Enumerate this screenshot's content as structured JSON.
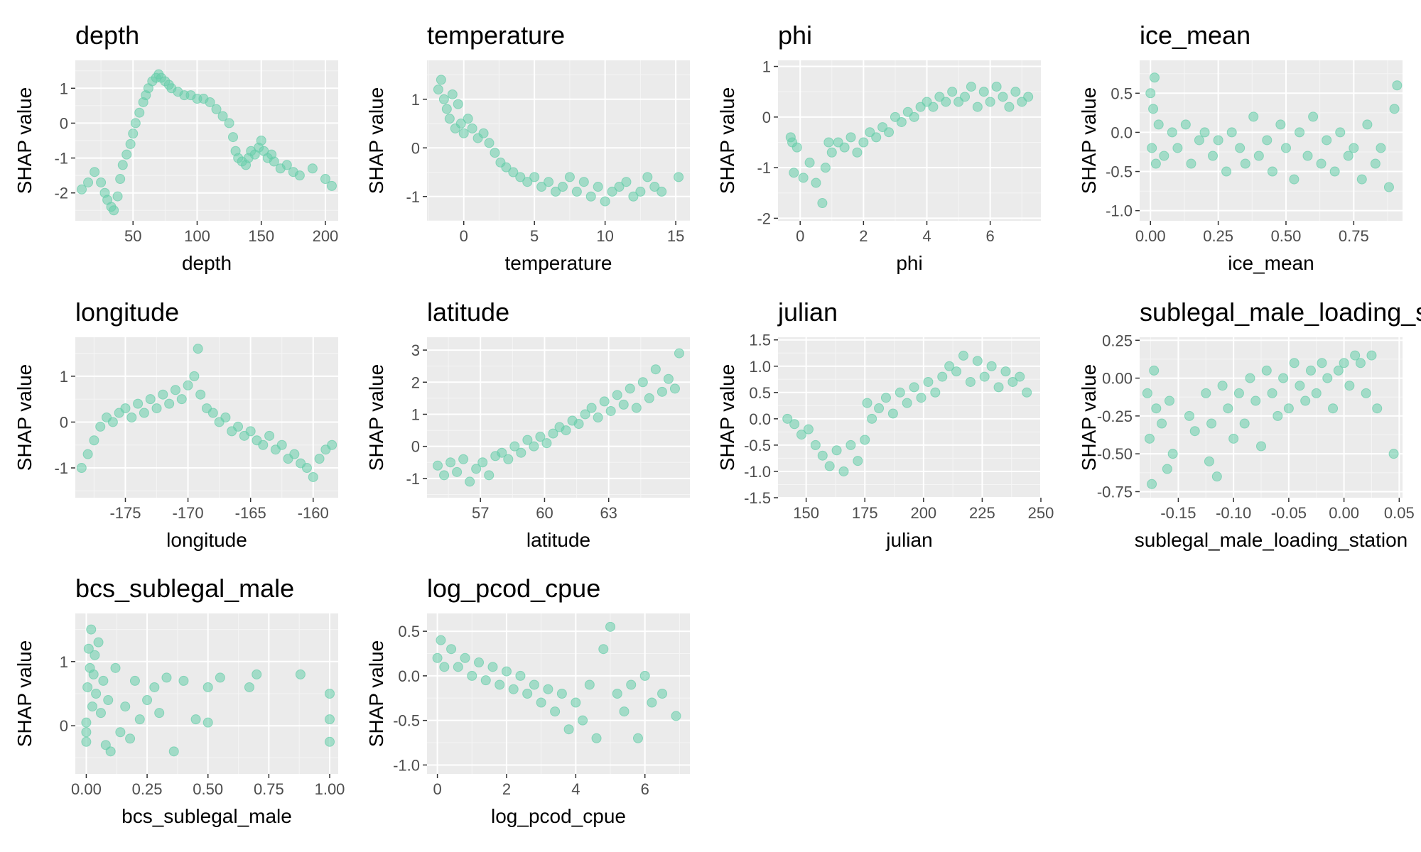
{
  "figure": {
    "colors": {
      "panel_bg": "#ebebeb",
      "grid_major": "#ffffff",
      "grid_minor": "#f5f5f5",
      "point": "#66cdaa",
      "tick_text": "#4d4d4d",
      "text": "#000000"
    }
  },
  "chart_data": [
    {
      "type": "scatter",
      "title": "depth",
      "xlabel": "depth",
      "ylabel": "SHAP value",
      "xlim": [
        5,
        210
      ],
      "ylim": [
        -2.8,
        1.8
      ],
      "xticks": [
        50,
        100,
        150,
        200
      ],
      "xtick_labels": [
        "50",
        "100",
        "150",
        "200"
      ],
      "yticks": [
        -2,
        -1,
        0,
        1
      ],
      "ytick_labels": [
        "-2",
        "-1",
        "0",
        "1"
      ],
      "x": [
        10,
        15,
        20,
        25,
        28,
        30,
        33,
        35,
        38,
        40,
        42,
        45,
        48,
        50,
        52,
        55,
        58,
        60,
        62,
        65,
        68,
        70,
        72,
        75,
        78,
        80,
        85,
        90,
        95,
        100,
        105,
        110,
        115,
        120,
        125,
        128,
        130,
        132,
        135,
        138,
        140,
        142,
        145,
        148,
        150,
        152,
        155,
        158,
        160,
        165,
        170,
        175,
        180,
        190,
        200,
        205
      ],
      "y": [
        -1.9,
        -1.7,
        -1.4,
        -1.7,
        -2.0,
        -2.2,
        -2.4,
        -2.5,
        -2.1,
        -1.6,
        -1.2,
        -0.9,
        -0.6,
        -0.3,
        0.0,
        0.3,
        0.6,
        0.8,
        1.0,
        1.2,
        1.3,
        1.4,
        1.3,
        1.2,
        1.1,
        1.0,
        0.9,
        0.8,
        0.8,
        0.7,
        0.7,
        0.6,
        0.4,
        0.2,
        0.0,
        -0.4,
        -0.8,
        -1.0,
        -1.1,
        -1.2,
        -1.0,
        -0.8,
        -0.9,
        -0.7,
        -0.5,
        -0.8,
        -1.0,
        -0.9,
        -1.1,
        -1.3,
        -1.2,
        -1.4,
        -1.5,
        -1.3,
        -1.6,
        -1.8
      ]
    },
    {
      "type": "scatter",
      "title": "temperature",
      "xlabel": "temperature",
      "ylabel": "SHAP value",
      "xlim": [
        -2.6,
        16
      ],
      "ylim": [
        -1.5,
        1.8
      ],
      "xticks": [
        0,
        5,
        10,
        15
      ],
      "xtick_labels": [
        "0",
        "5",
        "10",
        "15"
      ],
      "yticks": [
        -1,
        0,
        1
      ],
      "ytick_labels": [
        "-1",
        "0",
        "1"
      ],
      "x": [
        -1.8,
        -1.6,
        -1.4,
        -1.2,
        -1.0,
        -0.8,
        -0.6,
        -0.4,
        -0.2,
        0.0,
        0.3,
        0.6,
        1.0,
        1.4,
        1.8,
        2.2,
        2.6,
        3.0,
        3.5,
        4.0,
        4.5,
        5.0,
        5.5,
        6.0,
        6.5,
        7.0,
        7.5,
        8.0,
        8.5,
        9.0,
        9.5,
        10.0,
        10.5,
        11.0,
        11.5,
        12.0,
        12.5,
        13.0,
        13.5,
        14.0,
        15.2
      ],
      "y": [
        1.2,
        1.4,
        1.0,
        0.8,
        0.6,
        1.1,
        0.4,
        0.9,
        0.5,
        0.3,
        0.6,
        0.4,
        0.2,
        0.3,
        0.1,
        -0.1,
        -0.3,
        -0.4,
        -0.5,
        -0.6,
        -0.7,
        -0.6,
        -0.8,
        -0.7,
        -0.9,
        -0.8,
        -0.6,
        -0.9,
        -0.7,
        -1.0,
        -0.8,
        -1.1,
        -0.9,
        -0.8,
        -0.7,
        -1.0,
        -0.9,
        -0.6,
        -0.8,
        -0.9,
        -0.6
      ]
    },
    {
      "type": "scatter",
      "title": "phi",
      "xlabel": "phi",
      "ylabel": "SHAP value",
      "xlim": [
        -0.7,
        7.6
      ],
      "ylim": [
        -2.05,
        1.12
      ],
      "xticks": [
        0,
        2,
        4,
        6
      ],
      "xtick_labels": [
        "0",
        "2",
        "4",
        "6"
      ],
      "yticks": [
        -2,
        -1,
        0,
        1
      ],
      "ytick_labels": [
        "-2",
        "-1",
        "0",
        "1"
      ],
      "x": [
        -0.3,
        -0.25,
        -0.2,
        -0.1,
        0.1,
        0.3,
        0.5,
        0.7,
        0.8,
        0.9,
        1.0,
        1.2,
        1.4,
        1.6,
        1.8,
        2.0,
        2.2,
        2.4,
        2.6,
        2.8,
        3.0,
        3.2,
        3.4,
        3.6,
        3.8,
        4.0,
        4.2,
        4.4,
        4.6,
        4.8,
        5.0,
        5.2,
        5.4,
        5.6,
        5.8,
        6.0,
        6.2,
        6.4,
        6.6,
        6.8,
        7.0,
        7.2
      ],
      "y": [
        -0.4,
        -0.5,
        -1.1,
        -0.6,
        -1.2,
        -0.9,
        -1.3,
        -1.7,
        -1.0,
        -0.5,
        -0.7,
        -0.5,
        -0.6,
        -0.4,
        -0.7,
        -0.5,
        -0.3,
        -0.4,
        -0.2,
        -0.3,
        0.0,
        -0.1,
        0.1,
        0.0,
        0.2,
        0.3,
        0.2,
        0.4,
        0.3,
        0.5,
        0.3,
        0.4,
        0.6,
        0.2,
        0.5,
        0.3,
        0.6,
        0.4,
        0.2,
        0.5,
        0.3,
        0.4
      ]
    },
    {
      "type": "scatter",
      "title": "ice_mean",
      "xlabel": "ice_mean",
      "ylabel": "SHAP value",
      "xlim": [
        -0.04,
        0.93
      ],
      "ylim": [
        -1.13,
        0.92
      ],
      "xticks": [
        0,
        0.25,
        0.5,
        0.75
      ],
      "xtick_labels": [
        "0.00",
        "0.25",
        "0.50",
        "0.75"
      ],
      "yticks": [
        -1,
        -0.5,
        0,
        0.5
      ],
      "ytick_labels": [
        "-1.0",
        "-0.5",
        "0.0",
        "0.5"
      ],
      "x": [
        0.0,
        0.005,
        0.01,
        0.015,
        0.02,
        0.03,
        0.05,
        0.08,
        0.1,
        0.13,
        0.15,
        0.18,
        0.2,
        0.23,
        0.25,
        0.28,
        0.3,
        0.33,
        0.35,
        0.38,
        0.4,
        0.43,
        0.45,
        0.48,
        0.5,
        0.53,
        0.55,
        0.58,
        0.6,
        0.63,
        0.65,
        0.68,
        0.7,
        0.73,
        0.75,
        0.78,
        0.8,
        0.83,
        0.85,
        0.88,
        0.9,
        0.91
      ],
      "y": [
        0.5,
        -0.2,
        0.3,
        0.7,
        -0.4,
        0.1,
        -0.3,
        0.0,
        -0.2,
        0.1,
        -0.4,
        -0.1,
        0.0,
        -0.3,
        -0.1,
        -0.5,
        0.0,
        -0.2,
        -0.4,
        0.2,
        -0.3,
        -0.1,
        -0.5,
        0.1,
        -0.2,
        -0.6,
        0.0,
        -0.3,
        0.2,
        -0.4,
        -0.1,
        -0.5,
        0.0,
        -0.3,
        -0.2,
        -0.6,
        0.1,
        -0.4,
        -0.2,
        -0.7,
        0.3,
        0.6
      ]
    },
    {
      "type": "scatter",
      "title": "longitude",
      "xlabel": "longitude",
      "ylabel": "SHAP value",
      "xlim": [
        -179,
        -158
      ],
      "ylim": [
        -1.65,
        1.85
      ],
      "xticks": [
        -175,
        -170,
        -165,
        -160
      ],
      "xtick_labels": [
        "-175",
        "-170",
        "-165",
        "-160"
      ],
      "yticks": [
        -1,
        0,
        1
      ],
      "ytick_labels": [
        "-1",
        "0",
        "1"
      ],
      "x": [
        -178.5,
        -178,
        -177.5,
        -177,
        -176.5,
        -176,
        -175.5,
        -175,
        -174.5,
        -174,
        -173.5,
        -173,
        -172.5,
        -172,
        -171.5,
        -171,
        -170.5,
        -170,
        -169.5,
        -169.2,
        -169,
        -168.5,
        -168,
        -167.5,
        -167,
        -166.5,
        -166,
        -165.5,
        -165,
        -164.5,
        -164,
        -163.5,
        -163,
        -162.5,
        -162,
        -161.5,
        -161,
        -160.5,
        -160,
        -159.5,
        -159,
        -158.5
      ],
      "y": [
        -1.0,
        -0.7,
        -0.4,
        -0.1,
        0.1,
        0.0,
        0.2,
        0.3,
        0.1,
        0.4,
        0.2,
        0.5,
        0.3,
        0.6,
        0.4,
        0.7,
        0.5,
        0.8,
        1.0,
        1.6,
        0.6,
        0.3,
        0.2,
        0.0,
        0.1,
        -0.2,
        -0.1,
        -0.3,
        -0.2,
        -0.4,
        -0.5,
        -0.3,
        -0.6,
        -0.5,
        -0.8,
        -0.7,
        -0.9,
        -1.0,
        -1.2,
        -0.8,
        -0.6,
        -0.5
      ]
    },
    {
      "type": "scatter",
      "title": "latitude",
      "xlabel": "latitude",
      "ylabel": "SHAP value",
      "xlim": [
        54.5,
        66.8
      ],
      "ylim": [
        -1.6,
        3.4
      ],
      "xticks": [
        57,
        60,
        63
      ],
      "xtick_labels": [
        "57",
        "60",
        "63"
      ],
      "yticks": [
        -1,
        0,
        1,
        2,
        3
      ],
      "ytick_labels": [
        "-1",
        "0",
        "1",
        "2",
        "3"
      ],
      "x": [
        55.0,
        55.3,
        55.6,
        55.9,
        56.2,
        56.5,
        56.8,
        57.1,
        57.4,
        57.7,
        58.0,
        58.3,
        58.6,
        58.9,
        59.2,
        59.5,
        59.8,
        60.1,
        60.4,
        60.7,
        61.0,
        61.3,
        61.6,
        61.9,
        62.2,
        62.5,
        62.8,
        63.1,
        63.4,
        63.7,
        64.0,
        64.3,
        64.6,
        64.9,
        65.2,
        65.5,
        65.8,
        66.1,
        66.3
      ],
      "y": [
        -0.6,
        -0.9,
        -0.5,
        -0.8,
        -0.4,
        -1.1,
        -0.7,
        -0.5,
        -0.9,
        -0.3,
        -0.2,
        -0.4,
        0.0,
        -0.2,
        0.2,
        0.0,
        0.3,
        0.1,
        0.4,
        0.6,
        0.5,
        0.8,
        0.7,
        1.0,
        1.2,
        0.9,
        1.4,
        1.1,
        1.6,
        1.3,
        1.8,
        1.2,
        2.0,
        1.5,
        2.4,
        1.7,
        2.1,
        1.8,
        2.9
      ]
    },
    {
      "type": "scatter",
      "title": "julian",
      "xlabel": "julian",
      "ylabel": "SHAP value",
      "xlim": [
        138,
        250
      ],
      "ylim": [
        -1.5,
        1.55
      ],
      "xticks": [
        150,
        175,
        200,
        225,
        250
      ],
      "xtick_labels": [
        "150",
        "175",
        "200",
        "225",
        "250"
      ],
      "yticks": [
        -1.5,
        -1,
        -0.5,
        0,
        0.5,
        1,
        1.5
      ],
      "ytick_labels": [
        "-1.5",
        "-1.0",
        "-0.5",
        "0.0",
        "0.5",
        "1.0",
        "1.5"
      ],
      "x": [
        142,
        145,
        148,
        151,
        154,
        157,
        160,
        163,
        166,
        169,
        172,
        175,
        176,
        178,
        181,
        184,
        187,
        190,
        193,
        196,
        199,
        202,
        205,
        208,
        211,
        214,
        217,
        220,
        223,
        226,
        229,
        232,
        235,
        238,
        241,
        244
      ],
      "y": [
        0.0,
        -0.1,
        -0.3,
        -0.2,
        -0.5,
        -0.7,
        -0.9,
        -0.6,
        -1.0,
        -0.5,
        -0.8,
        -0.4,
        0.3,
        0.0,
        0.2,
        0.4,
        0.1,
        0.5,
        0.3,
        0.6,
        0.4,
        0.7,
        0.5,
        0.8,
        1.0,
        0.9,
        1.2,
        0.7,
        1.1,
        0.8,
        1.0,
        0.6,
        0.9,
        0.7,
        0.8,
        0.5
      ]
    },
    {
      "type": "scatter",
      "title": "sublegal_male_loading_s",
      "xlabel": "sublegal_male_loading_station",
      "ylabel": "SHAP value",
      "xlim": [
        -0.185,
        0.053
      ],
      "ylim": [
        -0.79,
        0.27
      ],
      "xticks": [
        -0.15,
        -0.1,
        -0.05,
        0,
        0.05
      ],
      "xtick_labels": [
        "-0.15",
        "-0.10",
        "-0.05",
        "0.00",
        "0.05"
      ],
      "yticks": [
        -0.75,
        -0.5,
        -0.25,
        0,
        0.25
      ],
      "ytick_labels": [
        "-0.75",
        "-0.50",
        "-0.25",
        "0.00",
        "0.25"
      ],
      "x": [
        -0.178,
        -0.176,
        -0.174,
        -0.172,
        -0.17,
        -0.165,
        -0.16,
        -0.158,
        -0.155,
        -0.14,
        -0.135,
        -0.125,
        -0.122,
        -0.12,
        -0.115,
        -0.11,
        -0.105,
        -0.1,
        -0.095,
        -0.09,
        -0.085,
        -0.08,
        -0.075,
        -0.07,
        -0.065,
        -0.06,
        -0.055,
        -0.05,
        -0.045,
        -0.04,
        -0.035,
        -0.03,
        -0.025,
        -0.02,
        -0.015,
        -0.01,
        -0.005,
        0.0,
        0.005,
        0.01,
        0.015,
        0.02,
        0.025,
        0.03,
        0.045
      ],
      "y": [
        -0.1,
        -0.4,
        -0.7,
        0.05,
        -0.2,
        -0.3,
        -0.6,
        -0.15,
        -0.5,
        -0.25,
        -0.35,
        -0.1,
        -0.55,
        -0.3,
        -0.65,
        -0.05,
        -0.2,
        -0.4,
        -0.1,
        -0.3,
        0.0,
        -0.15,
        -0.45,
        0.05,
        -0.1,
        -0.25,
        0.0,
        -0.2,
        0.1,
        -0.05,
        -0.15,
        0.05,
        -0.1,
        0.1,
        0.0,
        -0.2,
        0.05,
        0.1,
        -0.05,
        0.15,
        0.1,
        -0.1,
        0.15,
        -0.2,
        -0.5
      ]
    },
    {
      "type": "scatter",
      "title": "bcs_sublegal_male",
      "xlabel": "bcs_sublegal_male",
      "ylabel": "SHAP value",
      "xlim": [
        -0.045,
        1.035
      ],
      "ylim": [
        -0.75,
        1.75
      ],
      "xticks": [
        0,
        0.25,
        0.5,
        0.75,
        1
      ],
      "xtick_labels": [
        "0.00",
        "0.25",
        "0.50",
        "0.75",
        "1.00"
      ],
      "yticks": [
        0,
        1
      ],
      "ytick_labels": [
        "0",
        "1"
      ],
      "x": [
        0.0,
        0.0,
        0.0,
        0.005,
        0.01,
        0.015,
        0.02,
        0.025,
        0.03,
        0.035,
        0.04,
        0.05,
        0.06,
        0.07,
        0.08,
        0.09,
        0.1,
        0.12,
        0.14,
        0.16,
        0.18,
        0.2,
        0.22,
        0.25,
        0.28,
        0.3,
        0.33,
        0.36,
        0.4,
        0.45,
        0.5,
        0.5,
        0.55,
        0.67,
        0.7,
        0.88,
        1.0,
        1.0,
        1.0
      ],
      "y": [
        -0.1,
        -0.25,
        0.05,
        0.6,
        1.2,
        0.9,
        1.5,
        0.3,
        0.8,
        1.1,
        0.5,
        1.3,
        0.2,
        0.7,
        -0.3,
        0.4,
        -0.4,
        0.9,
        -0.1,
        0.3,
        -0.2,
        0.7,
        0.1,
        0.4,
        0.6,
        0.2,
        0.75,
        -0.4,
        0.7,
        0.1,
        0.05,
        0.6,
        0.75,
        0.6,
        0.8,
        0.8,
        0.5,
        0.1,
        -0.25
      ]
    },
    {
      "type": "scatter",
      "title": "log_pcod_cpue",
      "xlabel": "log_pcod_cpue",
      "ylabel": "SHAP value",
      "xlim": [
        -0.3,
        7.3
      ],
      "ylim": [
        -1.1,
        0.7
      ],
      "xticks": [
        0,
        2,
        4,
        6
      ],
      "xtick_labels": [
        "0",
        "2",
        "4",
        "6"
      ],
      "yticks": [
        -1,
        -0.5,
        0,
        0.5
      ],
      "ytick_labels": [
        "-1.0",
        "-0.5",
        "0.0",
        "0.5"
      ],
      "x": [
        0.0,
        0.1,
        0.2,
        0.4,
        0.6,
        0.8,
        1.0,
        1.2,
        1.4,
        1.6,
        1.8,
        2.0,
        2.2,
        2.4,
        2.6,
        2.8,
        3.0,
        3.2,
        3.4,
        3.6,
        3.8,
        4.0,
        4.2,
        4.4,
        4.6,
        4.8,
        5.0,
        5.2,
        5.4,
        5.6,
        5.8,
        6.0,
        6.2,
        6.5,
        6.9
      ],
      "y": [
        0.2,
        0.4,
        0.1,
        0.3,
        0.1,
        0.2,
        0.0,
        0.15,
        -0.05,
        0.1,
        -0.1,
        0.05,
        -0.15,
        0.0,
        -0.2,
        -0.1,
        -0.3,
        -0.15,
        -0.4,
        -0.2,
        -0.6,
        -0.3,
        -0.5,
        -0.1,
        -0.7,
        0.3,
        0.55,
        -0.2,
        -0.4,
        -0.1,
        -0.7,
        0.0,
        -0.3,
        -0.2,
        -0.45
      ]
    }
  ]
}
